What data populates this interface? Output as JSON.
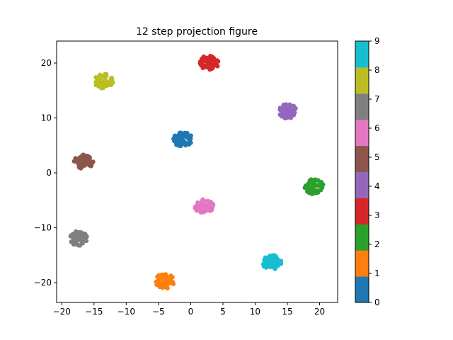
{
  "chart_data": {
    "type": "scatter",
    "title": "12 step projection figure",
    "xlabel": "",
    "ylabel": "",
    "xlim": [
      -20.8,
      22.8
    ],
    "ylim": [
      -23.6,
      24.0
    ],
    "xticks": [
      -20,
      -15,
      -10,
      -5,
      0,
      5,
      10,
      15,
      20
    ],
    "yticks": [
      -20,
      -10,
      0,
      10,
      20
    ],
    "grid": false,
    "colorbar": {
      "ticks": [
        0,
        1,
        2,
        3,
        4,
        5,
        6,
        7,
        8,
        9
      ],
      "min": 0,
      "max": 9,
      "colors": [
        "#1f77b4",
        "#ff7f0e",
        "#2ca02c",
        "#d62728",
        "#9467bd",
        "#8c564b",
        "#e377c2",
        "#7f7f7f",
        "#bcbd22",
        "#17becf"
      ]
    },
    "clusters": [
      {
        "label": 0,
        "x": -1.2,
        "y": 6.1
      },
      {
        "label": 1,
        "x": -4.0,
        "y": -19.7
      },
      {
        "label": 2,
        "x": 19.1,
        "y": -2.5
      },
      {
        "label": 3,
        "x": 2.9,
        "y": 20.1
      },
      {
        "label": 4,
        "x": 15.1,
        "y": 11.2
      },
      {
        "label": 5,
        "x": -16.6,
        "y": 2.1
      },
      {
        "label": 6,
        "x": 2.1,
        "y": -6.1
      },
      {
        "label": 7,
        "x": -17.4,
        "y": -11.9
      },
      {
        "label": 8,
        "x": -13.5,
        "y": 16.7
      },
      {
        "label": 9,
        "x": 12.6,
        "y": -16.3
      }
    ]
  }
}
